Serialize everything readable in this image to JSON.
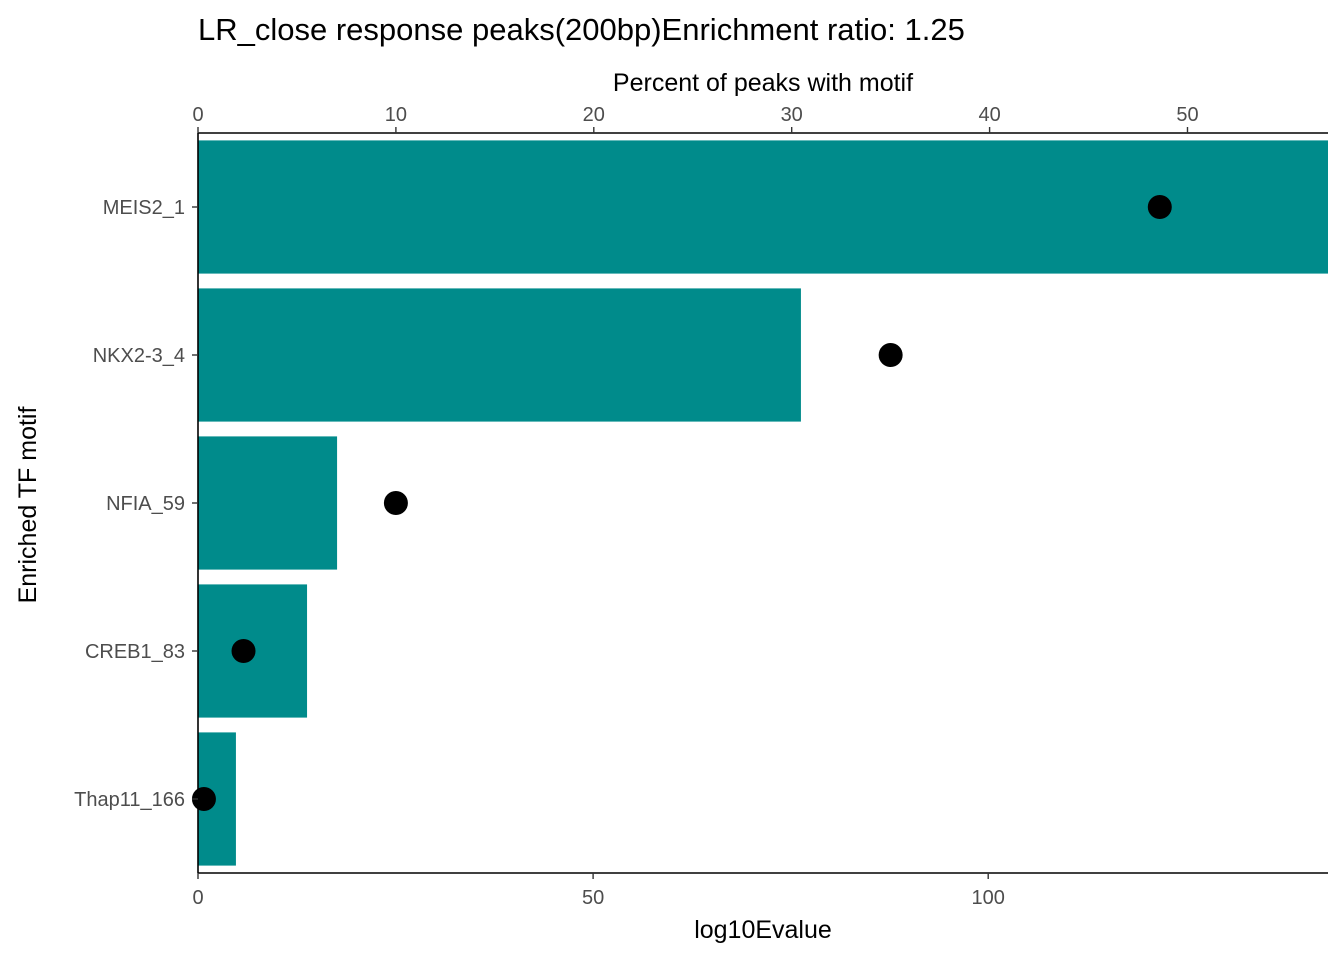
{
  "chart_data": {
    "type": "bar",
    "title": "LR_close response peaks(200bp)Enrichment ratio: 1.25",
    "xlabel_bottom": "log10Evalue",
    "xlabel_top": "Percent of peaks with motif",
    "ylabel": "Enriched TF motif",
    "categories": [
      "MEIS2_1",
      "NKX2-3_4",
      "NFIA_59",
      "CREB1_83",
      "Thap11_166"
    ],
    "series": [
      {
        "axis": "bottom",
        "mark": "bar",
        "color": "#008B8B",
        "values": [
          143,
          76.3,
          17.6,
          13.8,
          4.8
        ]
      },
      {
        "axis": "top",
        "mark": "point",
        "color": "#000000",
        "values": [
          48.6,
          35.0,
          10.0,
          2.3,
          0.3
        ]
      }
    ],
    "bottom_axis": {
      "range": [
        0,
        143
      ],
      "ticks": [
        0,
        50,
        100
      ]
    },
    "top_axis": {
      "range": [
        0,
        57.1
      ],
      "ticks": [
        0,
        10,
        20,
        30,
        40,
        50
      ]
    },
    "grid": false,
    "legend": "none"
  }
}
